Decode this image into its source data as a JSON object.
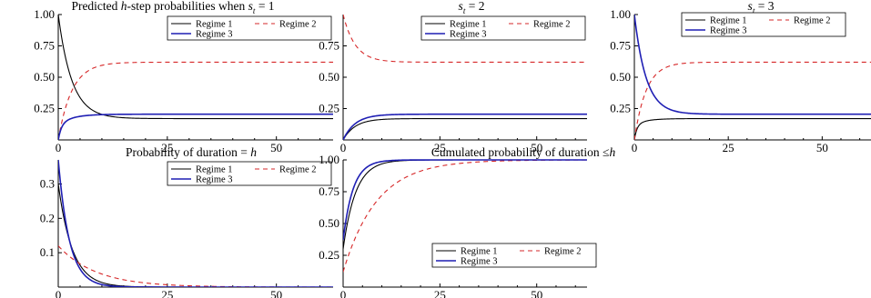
{
  "figure": {
    "title": ""
  },
  "chart_data": [
    {
      "id": "p1",
      "type": "line",
      "title": "Predicted h-step probabilities when s_t = 1",
      "title_parts": [
        "Predicted ",
        "h",
        "-step probabilities when ",
        "s",
        "t",
        " = 1"
      ],
      "xlim": [
        0,
        63
      ],
      "ylim": [
        0,
        1.0
      ],
      "xticks": [
        0,
        25,
        50
      ],
      "xtick_labels": [
        "0",
        "25",
        "50"
      ],
      "yticks": [
        0.25,
        0.5,
        0.75,
        1.0
      ],
      "ytick_labels": [
        "0.25",
        "0.50",
        "0.75",
        "1.00"
      ],
      "legend": {
        "position": "top-right",
        "entries": [
          "Regime 1",
          "Regime 2",
          "Regime 3"
        ]
      },
      "series": [
        {
          "name": "Regime 1",
          "color": "#000000",
          "dash": "solid",
          "model": "exp",
          "start": 1.0,
          "end": 0.17,
          "rate": 0.32
        },
        {
          "name": "Regime 2",
          "color": "#d62728",
          "dash": "dashed",
          "model": "exp",
          "start": 0.0,
          "end": 0.62,
          "rate": 0.32
        },
        {
          "name": "Regime 3",
          "color": "#1f1fb4",
          "dash": "solid",
          "model": "hump",
          "start": 0.0,
          "end": 0.205,
          "rate": 0.32,
          "rate2": 1.1,
          "peak_add": 0.03
        }
      ]
    },
    {
      "id": "p2",
      "type": "line",
      "title": "s_t = 2",
      "title_parts": [
        "",
        "",
        "",
        "s",
        "t",
        " = 2"
      ],
      "xlim": [
        0,
        63
      ],
      "ylim": [
        0,
        1.0
      ],
      "xticks": [
        0,
        25,
        50
      ],
      "xtick_labels": [
        "0",
        "25",
        "50"
      ],
      "yticks": [
        0.25,
        0.5,
        0.75
      ],
      "ytick_labels": [
        "0.25",
        "0.50",
        "0.75"
      ],
      "legend": {
        "position": "top-right",
        "entries": [
          "Regime 1",
          "Regime 2",
          "Regime 3"
        ]
      },
      "series": [
        {
          "name": "Regime 1",
          "color": "#000000",
          "dash": "solid",
          "model": "exp",
          "start": 0.0,
          "end": 0.17,
          "rate": 0.32
        },
        {
          "name": "Regime 2",
          "color": "#d62728",
          "dash": "dashed",
          "model": "exp",
          "start": 1.0,
          "end": 0.62,
          "rate": 0.32
        },
        {
          "name": "Regime 3",
          "color": "#1f1fb4",
          "dash": "solid",
          "model": "exp",
          "start": 0.0,
          "end": 0.205,
          "rate": 0.32
        }
      ]
    },
    {
      "id": "p3",
      "type": "line",
      "title": "s_t = 3",
      "title_parts": [
        "",
        "",
        "",
        "s",
        "t",
        " = 3"
      ],
      "xlim": [
        0,
        63
      ],
      "ylim": [
        0,
        1.0
      ],
      "xticks": [
        0,
        25,
        50
      ],
      "xtick_labels": [
        "0",
        "25",
        "50"
      ],
      "yticks": [
        0.25,
        0.5,
        0.75,
        1.0
      ],
      "ytick_labels": [
        "0.25",
        "0.50",
        "0.75",
        "1.00"
      ],
      "legend": {
        "position": "top-right",
        "entries": [
          "Regime 1",
          "Regime 2",
          "Regime 3"
        ]
      },
      "series": [
        {
          "name": "Regime 1",
          "color": "#000000",
          "dash": "solid",
          "model": "hump",
          "start": 0.0,
          "end": 0.17,
          "rate": 0.32,
          "rate2": 1.1,
          "peak_add": 0.03
        },
        {
          "name": "Regime 2",
          "color": "#d62728",
          "dash": "dashed",
          "model": "exp",
          "start": 0.0,
          "end": 0.62,
          "rate": 0.32
        },
        {
          "name": "Regime 3",
          "color": "#1f1fb4",
          "dash": "solid",
          "model": "exp",
          "start": 1.0,
          "end": 0.205,
          "rate": 0.32
        }
      ]
    },
    {
      "id": "p4",
      "type": "line",
      "title": "Probability of duration = h",
      "title_parts": [
        "Probability of duration = ",
        "h",
        "",
        "",
        "",
        ""
      ],
      "xlim": [
        0,
        63
      ],
      "ylim": [
        0,
        0.37
      ],
      "xticks": [
        0,
        25,
        50
      ],
      "xtick_labels": [
        "0",
        "25",
        "50"
      ],
      "yticks": [
        0.1,
        0.2,
        0.3
      ],
      "ytick_labels": [
        "0.1",
        "0.2",
        "0.3"
      ],
      "legend": {
        "position": "top-right",
        "entries": [
          "Regime 1",
          "Regime 2",
          "Regime 3"
        ]
      },
      "series": [
        {
          "name": "Regime 1",
          "color": "#000000",
          "dash": "solid",
          "model": "geom",
          "start": 0.3,
          "rate": 0.31
        },
        {
          "name": "Regime 2",
          "color": "#d62728",
          "dash": "dashed",
          "model": "geom",
          "start": 0.12,
          "rate": 0.115
        },
        {
          "name": "Regime 3",
          "color": "#1f1fb4",
          "dash": "solid",
          "model": "geom",
          "start": 0.37,
          "rate": 0.39
        }
      ]
    },
    {
      "id": "p5",
      "type": "line",
      "title": "Cumulated probability of duration ≤h",
      "title_parts": [
        "Cumulated probability of duration ≤",
        "h",
        "",
        "",
        "",
        ""
      ],
      "xlim": [
        0,
        63
      ],
      "ylim": [
        0,
        1.0
      ],
      "xticks": [
        0,
        25,
        50
      ],
      "xtick_labels": [
        "0",
        "25",
        "50"
      ],
      "yticks": [
        0.25,
        0.5,
        0.75,
        1.0
      ],
      "ytick_labels": [
        "0.25",
        "0.50",
        "0.75",
        "1.00"
      ],
      "legend": {
        "position": "bottom-right",
        "entries": [
          "Regime 1",
          "Regime 2",
          "Regime 3"
        ]
      },
      "series": [
        {
          "name": "Regime 1",
          "color": "#000000",
          "dash": "solid",
          "model": "cum",
          "start": 0.3,
          "rate": 0.31
        },
        {
          "name": "Regime 2",
          "color": "#d62728",
          "dash": "dashed",
          "model": "cum",
          "start": 0.12,
          "rate": 0.115
        },
        {
          "name": "Regime 3",
          "color": "#1f1fb4",
          "dash": "solid",
          "model": "cum",
          "start": 0.37,
          "rate": 0.39
        }
      ]
    }
  ]
}
